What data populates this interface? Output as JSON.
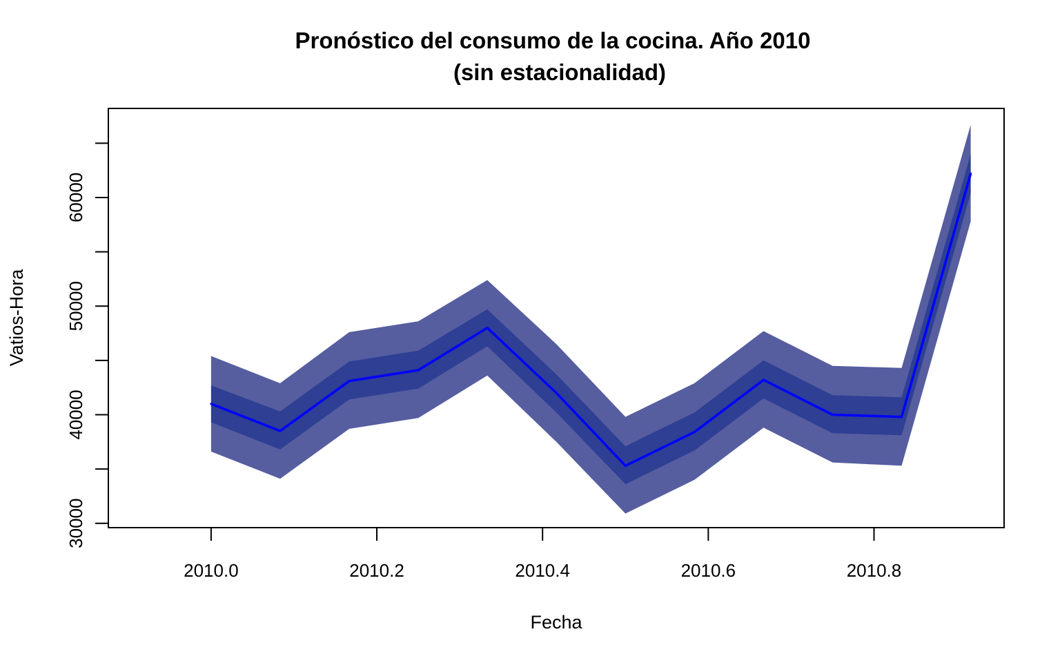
{
  "chart_data": {
    "type": "line",
    "title_line1": "Pronóstico del consumo de la cocina. Año 2010",
    "title_line2": "(sin estacionalidad)",
    "xlabel": "Fecha",
    "ylabel": "Vatios-Hora",
    "xlim": [
      2009.876,
      2010.957
    ],
    "ylim": [
      29600,
      68200
    ],
    "x_ticks": [
      2010.0,
      2010.2,
      2010.4,
      2010.6,
      2010.8
    ],
    "x_tick_labels": [
      "2010.0",
      "2010.2",
      "2010.4",
      "2010.6",
      "2010.8"
    ],
    "y_ticks": [
      30000,
      35000,
      40000,
      45000,
      50000,
      55000,
      60000,
      65000
    ],
    "y_tick_labels": [
      "30000",
      "",
      "40000",
      "",
      "50000",
      "",
      "60000",
      ""
    ],
    "x": [
      2010.0,
      2010.0833,
      2010.1667,
      2010.25,
      2010.3333,
      2010.4167,
      2010.5,
      2010.5833,
      2010.6667,
      2010.75,
      2010.8333,
      2010.9167
    ],
    "series": [
      {
        "role": "forecast",
        "color": "#0000FF",
        "values": [
          41000,
          38500,
          43100,
          44100,
          48000,
          42000,
          35300,
          38400,
          43200,
          40000,
          39800,
          62200
        ]
      },
      {
        "role": "interval-80",
        "color": "#2E3F94",
        "lower": [
          39300,
          36800,
          41400,
          42400,
          46300,
          40200,
          33600,
          36700,
          41500,
          38300,
          38100,
          60400
        ],
        "upper": [
          42700,
          40300,
          44900,
          45900,
          49700,
          43700,
          37100,
          40200,
          45000,
          41800,
          41600,
          64000
        ]
      },
      {
        "role": "interval-95",
        "color": "#565EA0",
        "lower": [
          36600,
          34100,
          38700,
          39700,
          43600,
          37500,
          30900,
          34000,
          38800,
          35600,
          35300,
          57800
        ],
        "upper": [
          45400,
          42900,
          47600,
          48600,
          52400,
          46500,
          39800,
          42900,
          47700,
          44500,
          44300,
          66700
        ]
      }
    ],
    "grid": false,
    "legend": "none"
  }
}
